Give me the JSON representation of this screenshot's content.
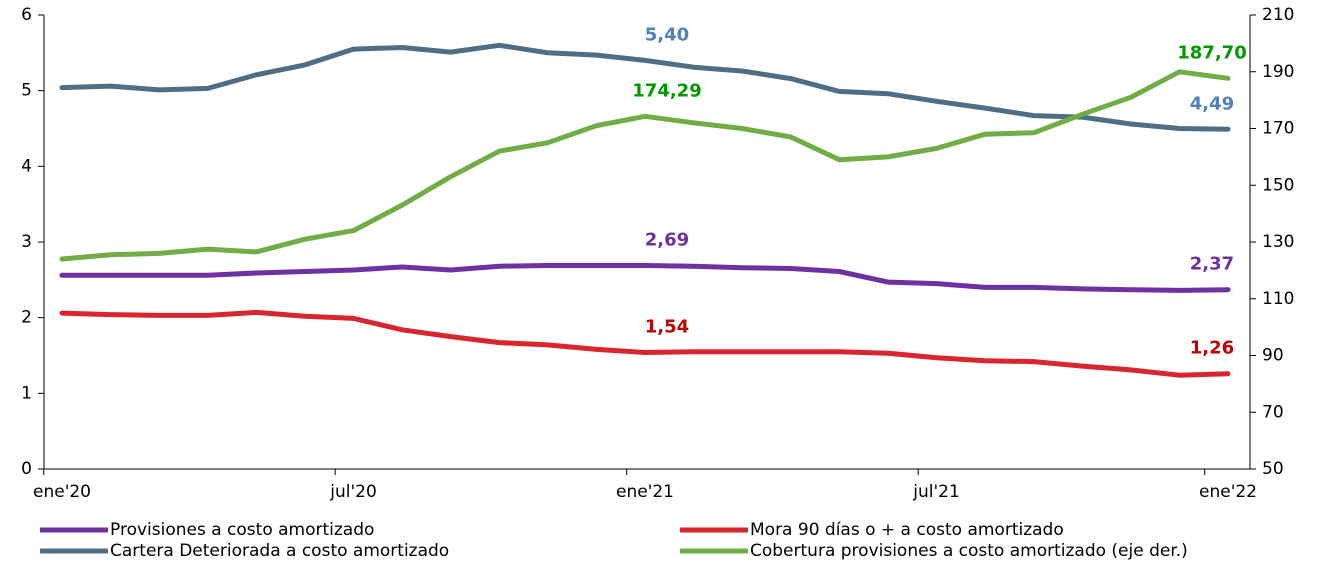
{
  "chart_data": {
    "type": "line",
    "categories": [
      "ene'20",
      null,
      null,
      null,
      null,
      null,
      "jul'20",
      null,
      null,
      null,
      null,
      null,
      "ene'21",
      null,
      null,
      null,
      null,
      null,
      "jul'21",
      null,
      null,
      null,
      null,
      null,
      "ene'22"
    ],
    "series": [
      {
        "name": "Provisiones a costo amortizado",
        "color": "#7030a0",
        "label_color": "#7030a0",
        "values": [
          2.56,
          2.56,
          2.56,
          2.56,
          2.59,
          2.61,
          2.63,
          2.67,
          2.63,
          2.68,
          2.69,
          2.69,
          2.69,
          2.68,
          2.66,
          2.65,
          2.61,
          2.47,
          2.45,
          2.4,
          2.4,
          2.38,
          2.37,
          2.36,
          2.37
        ],
        "value_labels": [
          null,
          null,
          null,
          null,
          null,
          null,
          null,
          null,
          null,
          null,
          null,
          null,
          "2,69",
          null,
          null,
          null,
          null,
          null,
          null,
          null,
          null,
          null,
          null,
          null,
          "2,37"
        ]
      },
      {
        "name": "Mora 90 días o + a costo amortizado",
        "color": "#d9262e",
        "label_color": "#c00000",
        "values": [
          2.06,
          2.04,
          2.03,
          2.03,
          2.07,
          2.02,
          1.99,
          1.84,
          1.75,
          1.67,
          1.64,
          1.58,
          1.54,
          1.55,
          1.55,
          1.55,
          1.55,
          1.53,
          1.47,
          1.43,
          1.42,
          1.36,
          1.31,
          1.24,
          1.26
        ],
        "value_labels": [
          null,
          null,
          null,
          null,
          null,
          null,
          null,
          null,
          null,
          null,
          null,
          null,
          "1,54",
          null,
          null,
          null,
          null,
          null,
          null,
          null,
          null,
          null,
          null,
          null,
          "1,26"
        ]
      },
      {
        "name": "Cartera Deteriorada a costo amortizado",
        "color": "#4f6d84",
        "label_color": "#4f81bd",
        "values": [
          5.04,
          5.06,
          5.01,
          5.03,
          5.21,
          5.34,
          5.55,
          5.57,
          5.51,
          5.6,
          5.5,
          5.47,
          5.4,
          5.31,
          5.26,
          5.16,
          4.99,
          4.96,
          4.86,
          4.77,
          4.67,
          4.65,
          4.56,
          4.5,
          4.49
        ],
        "value_labels": [
          null,
          null,
          null,
          null,
          null,
          null,
          null,
          null,
          null,
          null,
          null,
          null,
          "5,40",
          null,
          null,
          null,
          null,
          null,
          null,
          null,
          null,
          null,
          null,
          null,
          "4,49"
        ]
      },
      {
        "name": "Cobertura provisiones a costo amortizado (eje der.)",
        "color": "#70ad47",
        "label_color": "#009900",
        "axis": "y2",
        "values": [
          124,
          125.5,
          126,
          127.5,
          126.5,
          131,
          134,
          143,
          153,
          162,
          165,
          171,
          174.29,
          172,
          170,
          167,
          159,
          160,
          163,
          168,
          168.5,
          175,
          181,
          190,
          187.7
        ],
        "value_labels": [
          null,
          null,
          null,
          null,
          null,
          null,
          null,
          null,
          null,
          null,
          null,
          null,
          "174,29",
          null,
          null,
          null,
          null,
          null,
          null,
          null,
          null,
          null,
          null,
          null,
          "187,70"
        ]
      }
    ],
    "ylim": [
      0,
      6
    ],
    "yticks": [
      0,
      1,
      2,
      3,
      4,
      5,
      6
    ],
    "y2lim": [
      50,
      210
    ],
    "y2ticks": [
      50,
      70,
      90,
      110,
      130,
      150,
      170,
      190,
      210
    ],
    "grid": false
  }
}
